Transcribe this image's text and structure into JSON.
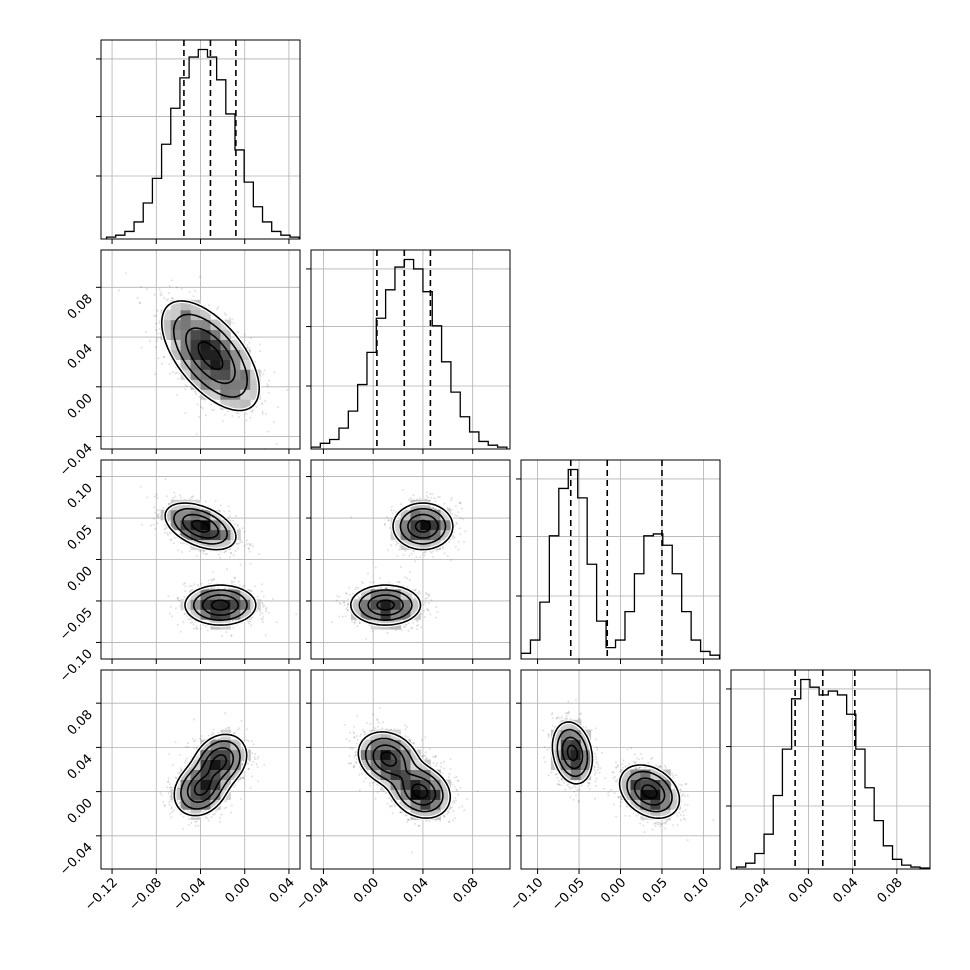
{
  "chart_data": {
    "type": "corner",
    "title": "",
    "grid": true,
    "n_params": 4,
    "params": [
      {
        "xlabel": "",
        "range": [
          -0.13,
          0.05
        ],
        "ticks": [
          -0.12,
          -0.08,
          -0.04,
          0.0,
          0.04
        ],
        "tick_labels": [
          "−0.12",
          "−0.08",
          "−0.04",
          "0.00",
          "0.04"
        ],
        "quantiles": [
          -0.055,
          -0.031,
          -0.008
        ]
      },
      {
        "xlabel": "",
        "range": [
          -0.05,
          0.11
        ],
        "ticks": [
          -0.04,
          0.0,
          0.04,
          0.08
        ],
        "tick_labels": [
          "−0.04",
          "0.00",
          "0.04",
          "0.08"
        ],
        "quantiles": [
          0.003,
          0.025,
          0.046
        ]
      },
      {
        "xlabel": "",
        "range": [
          -0.12,
          0.12
        ],
        "ticks": [
          -0.1,
          -0.05,
          0.0,
          0.05,
          0.1
        ],
        "tick_labels": [
          "−0.10",
          "−0.05",
          "0.00",
          "0.05",
          "0.10"
        ],
        "quantiles": [
          -0.06,
          -0.016,
          0.05
        ]
      },
      {
        "xlabel": "",
        "range": [
          -0.07,
          0.11
        ],
        "ticks": [
          -0.04,
          0.0,
          0.04,
          0.08
        ],
        "tick_labels": [
          "−0.04",
          "0.00",
          "0.04",
          "0.08"
        ],
        "quantiles": [
          -0.012,
          0.013,
          0.042
        ]
      }
    ],
    "histograms": [
      {
        "param": 0,
        "bin_start": -0.125,
        "bin_width": 0.0083,
        "counts": [
          0.01,
          0.02,
          0.04,
          0.09,
          0.19,
          0.32,
          0.5,
          0.69,
          0.85,
          0.96,
          1.0,
          0.96,
          0.84,
          0.66,
          0.47,
          0.3,
          0.17,
          0.09,
          0.04,
          0.02,
          0.01
        ]
      },
      {
        "param": 1,
        "bin_start": -0.05,
        "bin_width": 0.0075,
        "counts": [
          0.01,
          0.03,
          0.05,
          0.11,
          0.2,
          0.34,
          0.51,
          0.69,
          0.84,
          0.96,
          1.0,
          0.95,
          0.83,
          0.65,
          0.46,
          0.3,
          0.17,
          0.09,
          0.04,
          0.02,
          0.01
        ]
      },
      {
        "param": 2,
        "bin_start": -0.12,
        "bin_width": 0.0114,
        "counts": [
          0.03,
          0.1,
          0.3,
          0.65,
          0.9,
          1.0,
          0.85,
          0.5,
          0.2,
          0.06,
          0.1,
          0.25,
          0.45,
          0.65,
          0.66,
          0.6,
          0.45,
          0.25,
          0.1,
          0.04,
          0.02
        ]
      },
      {
        "param": 3,
        "bin_start": -0.065,
        "bin_width": 0.0083,
        "counts": [
          0.01,
          0.03,
          0.08,
          0.18,
          0.38,
          0.62,
          0.88,
          0.98,
          0.94,
          0.9,
          0.92,
          0.9,
          0.8,
          0.62,
          0.42,
          0.25,
          0.12,
          0.05,
          0.02,
          0.01,
          0.005
        ]
      }
    ],
    "density_panels": [
      {
        "row": 1,
        "col": 0,
        "modes": [
          {
            "mx": -0.031,
            "my": 0.025,
            "sx": 0.022,
            "sy": 0.022,
            "rho": -0.6,
            "w": 1.0
          }
        ]
      },
      {
        "row": 2,
        "col": 0,
        "modes": [
          {
            "mx": -0.04,
            "my": 0.04,
            "sx": 0.016,
            "sy": 0.014,
            "rho": -0.45,
            "w": 1.0
          },
          {
            "mx": -0.022,
            "my": -0.055,
            "sx": 0.016,
            "sy": 0.012,
            "rho": 0.0,
            "w": 1.0
          }
        ]
      },
      {
        "row": 2,
        "col": 1,
        "modes": [
          {
            "mx": 0.04,
            "my": 0.04,
            "sx": 0.012,
            "sy": 0.014,
            "rho": 0.0,
            "w": 1.0
          },
          {
            "mx": 0.01,
            "my": -0.055,
            "sx": 0.014,
            "sy": 0.012,
            "rho": 0.0,
            "w": 1.0
          }
        ]
      },
      {
        "row": 3,
        "col": 0,
        "modes": [
          {
            "mx": -0.04,
            "my": 0.002,
            "sx": 0.012,
            "sy": 0.012,
            "rho": 0.2,
            "w": 1.0
          },
          {
            "mx": -0.022,
            "my": 0.028,
            "sx": 0.012,
            "sy": 0.012,
            "rho": 0.2,
            "w": 1.0
          }
        ]
      },
      {
        "row": 3,
        "col": 1,
        "modes": [
          {
            "mx": 0.012,
            "my": 0.03,
            "sx": 0.012,
            "sy": 0.012,
            "rho": -0.2,
            "w": 1.0
          },
          {
            "mx": 0.038,
            "my": 0.0,
            "sx": 0.012,
            "sy": 0.012,
            "rho": -0.2,
            "w": 1.0
          }
        ]
      },
      {
        "row": 3,
        "col": 2,
        "modes": [
          {
            "mx": -0.058,
            "my": 0.035,
            "sx": 0.012,
            "sy": 0.014,
            "rho": -0.2,
            "w": 1.0
          },
          {
            "mx": 0.035,
            "my": 0.0,
            "sx": 0.018,
            "sy": 0.012,
            "rho": -0.3,
            "w": 1.0
          }
        ]
      }
    ],
    "contour_levels": [
      0.135,
      0.32,
      0.6,
      0.88
    ]
  }
}
